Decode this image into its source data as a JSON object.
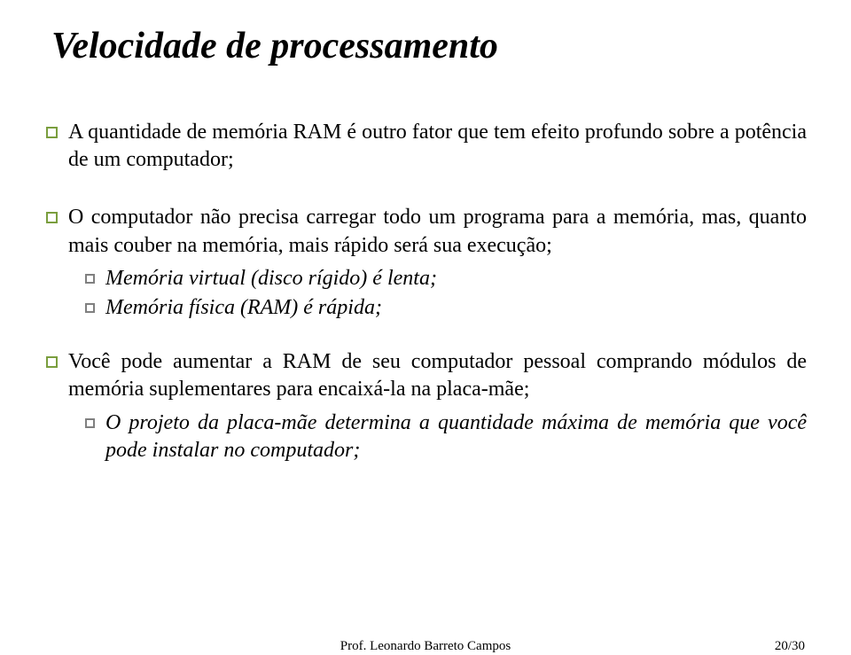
{
  "title": "Velocidade de processamento",
  "colors": {
    "title_color": "#000000",
    "text_color": "#000000",
    "l1_bullet_border": "#7a9e3e",
    "l2_bullet_border": "#808080",
    "background": "#ffffff"
  },
  "typography": {
    "body_font": "Comic Sans MS",
    "footer_font": "Times New Roman",
    "title_fontsize": 42,
    "body_fontsize": 24,
    "footer_fontsize": 15
  },
  "bullets": {
    "b1": "A quantidade de memória RAM é outro fator que tem efeito profundo sobre a potência de um computador;",
    "b2": "O computador não precisa carregar todo um programa para a memória, mas, quanto mais couber na memória, mais rápido será sua execução;",
    "b2_sub1": "Memória virtual (disco rígido) é lenta;",
    "b2_sub2": "Memória física (RAM) é rápida;",
    "b3": "Você pode aumentar a RAM de seu computador pessoal comprando módulos de memória suplementares para encaixá-la na placa-mãe;",
    "b3_sub1": "O projeto da placa-mãe determina a quantidade máxima de memória que você pode instalar no computador;"
  },
  "footer": {
    "author": "Prof. Leonardo Barreto Campos",
    "page": "20/30"
  }
}
